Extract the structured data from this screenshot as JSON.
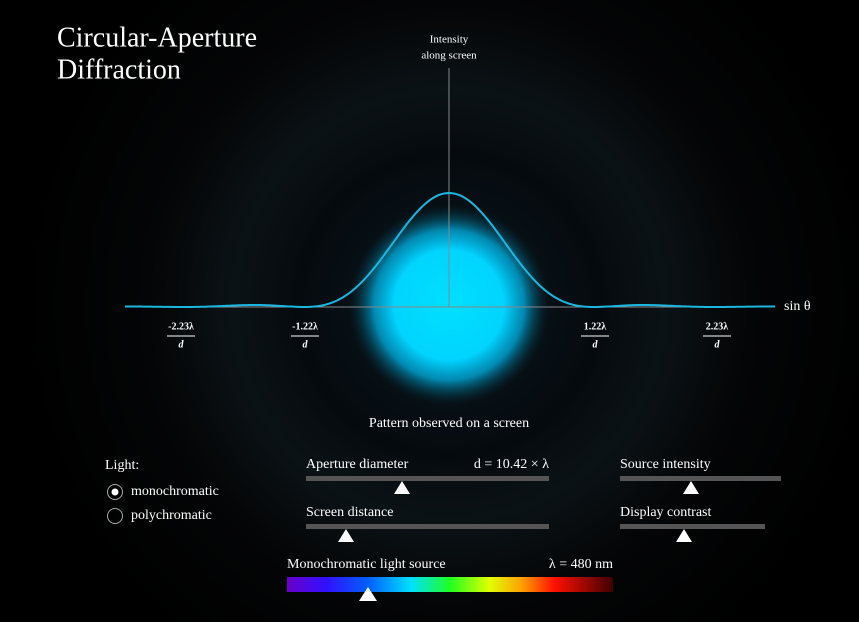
{
  "header": {
    "title": [
      "Circular-Aperture",
      "Diffraction"
    ]
  },
  "plot": {
    "intensity_label": [
      "Intensity",
      "along screen"
    ],
    "axis_label": "sin θ",
    "ticks": [
      {
        "numerator": "-2.23λ",
        "denominator": "d"
      },
      {
        "numerator": "-1.22λ",
        "denominator": "d"
      },
      {
        "numerator": "1.22λ",
        "denominator": "d"
      },
      {
        "numerator": "2.23λ",
        "denominator": "d"
      }
    ],
    "caption": "Pattern observed on a screen"
  },
  "controls": {
    "light": {
      "label": "Light:",
      "options": [
        "monochromatic",
        "polychromatic"
      ]
    },
    "aperture": {
      "label": "Aperture diameter",
      "value": "d = 10.42 × λ"
    },
    "distance": {
      "label": "Screen distance"
    },
    "intensity": {
      "label": "Source intensity"
    },
    "contrast": {
      "label": "Display contrast"
    },
    "source": {
      "label": "Monochromatic light source",
      "value": "λ = 480 nm"
    }
  }
}
